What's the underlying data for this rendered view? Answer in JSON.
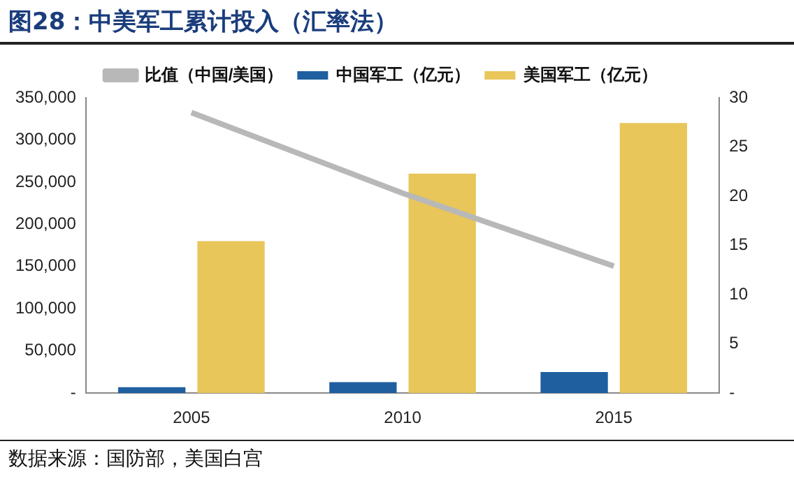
{
  "chart_data": {
    "type": "bar",
    "title": "图28：中美军工累计投入（汇率法）",
    "categories": [
      "2005",
      "2010",
      "2015"
    ],
    "series": [
      {
        "name": "中国军工（亿元）",
        "color": "#1f5fa0",
        "values": [
          7000,
          13000,
          25000
        ]
      },
      {
        "name": "美国军工（亿元）",
        "color": "#e8c65a",
        "values": [
          180000,
          260000,
          320000
        ]
      },
      {
        "name": "比值（中国/美国）",
        "type": "line",
        "axis": "y2",
        "color": "#b8b8b8",
        "values": [
          28.5,
          20.3,
          12.9
        ],
        "marker": "none"
      }
    ],
    "ylim": [
      0,
      350000
    ],
    "yticks": [
      {
        "value": 0,
        "label": "-"
      },
      {
        "value": 50000,
        "label": "50,000"
      },
      {
        "value": 100000,
        "label": "100,000"
      },
      {
        "value": 150000,
        "label": "150,000"
      },
      {
        "value": 200000,
        "label": "200,000"
      },
      {
        "value": 250000,
        "label": "250,000"
      },
      {
        "value": 300000,
        "label": "300,000"
      },
      {
        "value": 350000,
        "label": "350,000"
      }
    ],
    "y2lim": [
      0,
      30
    ],
    "y2ticks": [
      {
        "value": 0,
        "label": "-"
      },
      5,
      10,
      15,
      20,
      25,
      30
    ],
    "grid": false,
    "legend": "top",
    "annotations": [
      "数据来源：国防部，美国白宫"
    ]
  }
}
